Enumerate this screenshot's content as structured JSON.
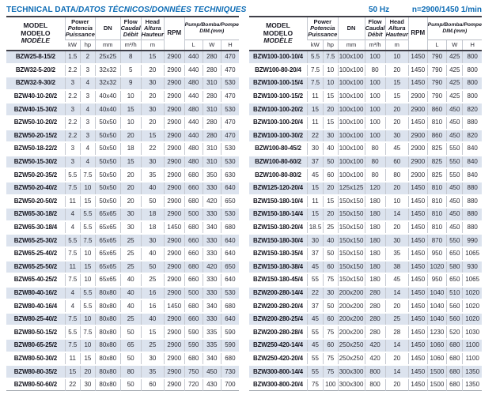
{
  "page": {
    "title_en": "TECHNICAL DATA",
    "title_intl": "/DATOS TÉCNICOS/DONNÉES TECHNIQUES",
    "frequency": "50 Hz",
    "speed": "n=2900/1450 1/min"
  },
  "colors": {
    "accent_blue": "#0d6cb5",
    "row_shade": "#dce3ee",
    "grid_line": "#c4c8d0",
    "rule_dark": "#3f3f48"
  },
  "table_header": {
    "model": [
      "MODEL",
      "MODELO",
      "MODÈLE"
    ],
    "power": [
      "Power",
      "Potencia",
      "Puissance"
    ],
    "dn": "DN",
    "flow": [
      "Flow",
      "Caudal",
      "Débit"
    ],
    "head": [
      "Head",
      "Altura",
      "Hauteur"
    ],
    "rpm": "RPM",
    "dim_title": "Pump/Bomba/Pompe",
    "dim_sub": "DIM.(mm)",
    "units": {
      "kw": "kW",
      "hp": "hp",
      "mm": "mm",
      "flow": "m³/h",
      "head": "m"
    },
    "dim_units": [
      "L",
      "W",
      "H"
    ]
  },
  "tables": {
    "left": {
      "rows": [
        [
          "BZW25-8-15/2",
          "1.5",
          "2",
          "25x25",
          "8",
          "15",
          "2900",
          "440",
          "280",
          "470"
        ],
        [
          "BZW32-5-20/2",
          "2.2",
          "3",
          "32x32",
          "5",
          "20",
          "2900",
          "440",
          "280",
          "470"
        ],
        [
          "BZW32-9-30/2",
          "3",
          "4",
          "32x32",
          "9",
          "30",
          "2900",
          "480",
          "310",
          "530"
        ],
        [
          "BZW40-10-20/2",
          "2.2",
          "3",
          "40x40",
          "10",
          "20",
          "2900",
          "440",
          "280",
          "470"
        ],
        [
          "BZW40-15-30/2",
          "3",
          "4",
          "40x40",
          "15",
          "30",
          "2900",
          "480",
          "310",
          "530"
        ],
        [
          "BZW50-10-20/2",
          "2.2",
          "3",
          "50x50",
          "10",
          "20",
          "2900",
          "440",
          "280",
          "470"
        ],
        [
          "BZW50-20-15/2",
          "2.2",
          "3",
          "50x50",
          "20",
          "15",
          "2900",
          "440",
          "280",
          "470"
        ],
        [
          "BZW50-18-22/2",
          "3",
          "4",
          "50x50",
          "18",
          "22",
          "2900",
          "480",
          "310",
          "530"
        ],
        [
          "BZW50-15-30/2",
          "3",
          "4",
          "50x50",
          "15",
          "30",
          "2900",
          "480",
          "310",
          "530"
        ],
        [
          "BZW50-20-35/2",
          "5.5",
          "7.5",
          "50x50",
          "20",
          "35",
          "2900",
          "680",
          "350",
          "630"
        ],
        [
          "BZW50-20-40/2",
          "7.5",
          "10",
          "50x50",
          "20",
          "40",
          "2900",
          "660",
          "330",
          "640"
        ],
        [
          "BZW50-20-50/2",
          "11",
          "15",
          "50x50",
          "20",
          "50",
          "2900",
          "680",
          "420",
          "650"
        ],
        [
          "BZW65-30-18/2",
          "4",
          "5.5",
          "65x65",
          "30",
          "18",
          "2900",
          "500",
          "330",
          "530"
        ],
        [
          "BZW65-30-18/4",
          "4",
          "5.5",
          "65x65",
          "30",
          "18",
          "1450",
          "680",
          "340",
          "680"
        ],
        [
          "BZW65-25-30/2",
          "5.5",
          "7.5",
          "65x65",
          "25",
          "30",
          "2900",
          "660",
          "330",
          "640"
        ],
        [
          "BZW65-25-40/2",
          "7.5",
          "10",
          "65x65",
          "25",
          "40",
          "2900",
          "660",
          "330",
          "640"
        ],
        [
          "BZW65-25-50/2",
          "11",
          "15",
          "65x65",
          "25",
          "50",
          "2900",
          "680",
          "420",
          "650"
        ],
        [
          "BZW65-40-25/2",
          "7.5",
          "10",
          "65x65",
          "40",
          "25",
          "2900",
          "660",
          "330",
          "640"
        ],
        [
          "BZW80-40-16/2",
          "4",
          "5.5",
          "80x80",
          "40",
          "16",
          "2900",
          "500",
          "330",
          "530"
        ],
        [
          "BZW80-40-16/4",
          "4",
          "5.5",
          "80x80",
          "40",
          "16",
          "1450",
          "680",
          "340",
          "680"
        ],
        [
          "BZW80-25-40/2",
          "7.5",
          "10",
          "80x80",
          "25",
          "40",
          "2900",
          "660",
          "330",
          "640"
        ],
        [
          "BZW80-50-15/2",
          "5.5",
          "7.5",
          "80x80",
          "50",
          "15",
          "2900",
          "590",
          "335",
          "590"
        ],
        [
          "BZW80-65-25/2",
          "7.5",
          "10",
          "80x80",
          "65",
          "25",
          "2900",
          "590",
          "335",
          "590"
        ],
        [
          "BZW80-50-30/2",
          "11",
          "15",
          "80x80",
          "50",
          "30",
          "2900",
          "680",
          "340",
          "680"
        ],
        [
          "BZW80-80-35/2",
          "15",
          "20",
          "80x80",
          "80",
          "35",
          "2900",
          "750",
          "450",
          "730"
        ],
        [
          "BZW80-50-60/2",
          "22",
          "30",
          "80x80",
          "50",
          "60",
          "2900",
          "720",
          "430",
          "700"
        ]
      ]
    },
    "right": {
      "rows": [
        [
          "BZW100-100-10/4",
          "5.5",
          "7.5",
          "100x100",
          "100",
          "10",
          "1450",
          "790",
          "425",
          "800"
        ],
        [
          "BZW100-80-20/4",
          "7.5",
          "10",
          "100x100",
          "80",
          "20",
          "1450",
          "790",
          "425",
          "800"
        ],
        [
          "BZW100-100-15/4",
          "7.5",
          "10",
          "100x100",
          "100",
          "15",
          "1450",
          "790",
          "425",
          "800"
        ],
        [
          "BZW100-100-15/2",
          "11",
          "15",
          "100x100",
          "100",
          "15",
          "2900",
          "790",
          "425",
          "800"
        ],
        [
          "BZW100-100-20/2",
          "15",
          "20",
          "100x100",
          "100",
          "20",
          "2900",
          "860",
          "450",
          "820"
        ],
        [
          "BZW100-100-20/4",
          "11",
          "15",
          "100x100",
          "100",
          "20",
          "1450",
          "810",
          "450",
          "880"
        ],
        [
          "BZW100-100-30/2",
          "22",
          "30",
          "100x100",
          "100",
          "30",
          "2900",
          "860",
          "450",
          "820"
        ],
        [
          "BZW100-80-45/2",
          "30",
          "40",
          "100x100",
          "80",
          "45",
          "2900",
          "825",
          "550",
          "840"
        ],
        [
          "BZW100-80-60/2",
          "37",
          "50",
          "100x100",
          "80",
          "60",
          "2900",
          "825",
          "550",
          "840"
        ],
        [
          "BZW100-80-80/2",
          "45",
          "60",
          "100x100",
          "80",
          "80",
          "2900",
          "825",
          "550",
          "840"
        ],
        [
          "BZW125-120-20/4",
          "15",
          "20",
          "125x125",
          "120",
          "20",
          "1450",
          "810",
          "450",
          "880"
        ],
        [
          "BZW150-180-10/4",
          "11",
          "15",
          "150x150",
          "180",
          "10",
          "1450",
          "810",
          "450",
          "880"
        ],
        [
          "BZW150-180-14/4",
          "15",
          "20",
          "150x150",
          "180",
          "14",
          "1450",
          "810",
          "450",
          "880"
        ],
        [
          "BZW150-180-20/4",
          "18.5",
          "25",
          "150x150",
          "180",
          "20",
          "1450",
          "810",
          "450",
          "880"
        ],
        [
          "BZW150-180-30/4",
          "30",
          "40",
          "150x150",
          "180",
          "30",
          "1450",
          "870",
          "550",
          "990"
        ],
        [
          "BZW150-180-35/4",
          "37",
          "50",
          "150x150",
          "180",
          "35",
          "1450",
          "950",
          "650",
          "1065"
        ],
        [
          "BZW150-180-38/4",
          "45",
          "60",
          "150x150",
          "180",
          "38",
          "1450",
          "1020",
          "580",
          "930"
        ],
        [
          "BZW150-180-45/4",
          "55",
          "75",
          "150x150",
          "180",
          "45",
          "1450",
          "950",
          "650",
          "1065"
        ],
        [
          "BZW200-280-14/4",
          "22",
          "30",
          "200x200",
          "280",
          "14",
          "1450",
          "1040",
          "510",
          "1020"
        ],
        [
          "BZW200-280-20/4",
          "37",
          "50",
          "200x200",
          "280",
          "20",
          "1450",
          "1040",
          "560",
          "1020"
        ],
        [
          "BZW200-280-25/4",
          "45",
          "60",
          "200x200",
          "280",
          "25",
          "1450",
          "1040",
          "560",
          "1020"
        ],
        [
          "BZW200-280-28/4",
          "55",
          "75",
          "200x200",
          "280",
          "28",
          "1450",
          "1230",
          "520",
          "1030"
        ],
        [
          "BZW250-420-14/4",
          "45",
          "60",
          "250x250",
          "420",
          "14",
          "1450",
          "1060",
          "680",
          "1100"
        ],
        [
          "BZW250-420-20/4",
          "55",
          "75",
          "250x250",
          "420",
          "20",
          "1450",
          "1060",
          "680",
          "1100"
        ],
        [
          "BZW300-800-14/4",
          "55",
          "75",
          "300x300",
          "800",
          "14",
          "1450",
          "1500",
          "680",
          "1350"
        ],
        [
          "BZW300-800-20/4",
          "75",
          "100",
          "300x300",
          "800",
          "20",
          "1450",
          "1500",
          "680",
          "1350"
        ]
      ]
    }
  }
}
